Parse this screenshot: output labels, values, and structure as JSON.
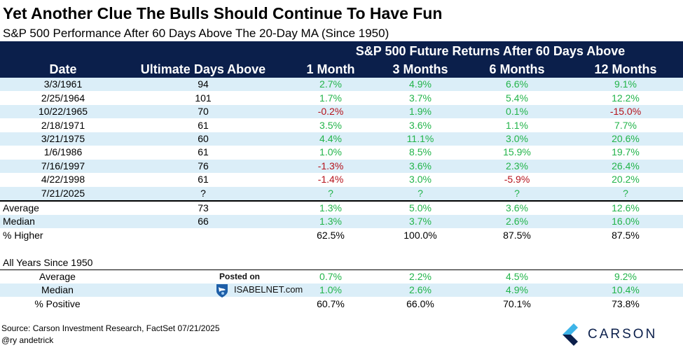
{
  "title": "Yet Another Clue The Bulls Should Continue To Have Fun",
  "subtitle": "S&P 500 Performance After 60 Days Above The 20-Day MA (Since 1950)",
  "header": {
    "group_label": "S&P 500 Future Returns After 60 Days Above",
    "columns": [
      "Date",
      "Ultimate Days Above",
      "1 Month",
      "3 Months",
      "6 Months",
      "12 Months"
    ]
  },
  "rows": [
    {
      "date": "3/3/1961",
      "days": "94",
      "m1": "2.7%",
      "m3": "4.9%",
      "m6": "6.6%",
      "m12": "9.1%"
    },
    {
      "date": "2/25/1964",
      "days": "101",
      "m1": "1.7%",
      "m3": "3.7%",
      "m6": "5.4%",
      "m12": "12.2%"
    },
    {
      "date": "10/22/1965",
      "days": "70",
      "m1": "-0.2%",
      "m3": "1.9%",
      "m6": "0.1%",
      "m12": "-15.0%"
    },
    {
      "date": "2/18/1971",
      "days": "61",
      "m1": "3.5%",
      "m3": "3.6%",
      "m6": "1.1%",
      "m12": "7.7%"
    },
    {
      "date": "3/21/1975",
      "days": "60",
      "m1": "4.4%",
      "m3": "11.1%",
      "m6": "3.0%",
      "m12": "20.6%"
    },
    {
      "date": "1/6/1986",
      "days": "61",
      "m1": "1.0%",
      "m3": "8.5%",
      "m6": "15.9%",
      "m12": "19.7%"
    },
    {
      "date": "7/16/1997",
      "days": "76",
      "m1": "-1.3%",
      "m3": "3.6%",
      "m6": "2.3%",
      "m12": "26.4%"
    },
    {
      "date": "4/22/1998",
      "days": "61",
      "m1": "-1.4%",
      "m3": "3.0%",
      "m6": "-5.9%",
      "m12": "20.2%"
    },
    {
      "date": "7/21/2025",
      "days": "?",
      "m1": "?",
      "m3": "?",
      "m6": "?",
      "m12": "?"
    }
  ],
  "summary": [
    {
      "label": "Average",
      "days": "73",
      "m1": "1.3%",
      "m3": "5.0%",
      "m6": "3.6%",
      "m12": "12.6%"
    },
    {
      "label": "Median",
      "days": "66",
      "m1": "1.3%",
      "m3": "3.7%",
      "m6": "2.6%",
      "m12": "16.0%"
    },
    {
      "label": "% Higher",
      "days": "",
      "m1": "62.5%",
      "m3": "100.0%",
      "m6": "87.5%",
      "m12": "87.5%"
    }
  ],
  "all_years": {
    "heading": "All Years Since 1950",
    "rows": [
      {
        "label": "Average",
        "m1": "0.7%",
        "m3": "2.2%",
        "m6": "4.5%",
        "m12": "9.2%"
      },
      {
        "label": "Median",
        "m1": "1.0%",
        "m3": "2.6%",
        "m6": "4.9%",
        "m12": "10.4%"
      },
      {
        "label": "% Positive",
        "m1": "60.7%",
        "m3": "66.0%",
        "m6": "70.1%",
        "m12": "73.8%"
      }
    ]
  },
  "watermark": {
    "posted": "Posted on",
    "name": "ISABELNET.com"
  },
  "footer": {
    "source": "Source: Carson Investment Research, FactSet 07/21/2025",
    "handle": "@ry andetrick"
  },
  "brand": {
    "name": "CARSON"
  },
  "colors": {
    "header_bg": "#0b1f4b",
    "row_shade": "#dbeef8",
    "positive": "#22b44a",
    "negative": "#b5121b"
  }
}
